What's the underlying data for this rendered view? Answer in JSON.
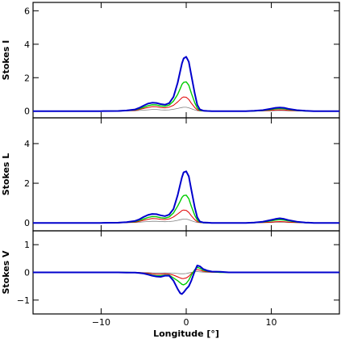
{
  "chart_data": {
    "type": "line",
    "xlabel": "Longitude [°]",
    "xlim": [
      -18,
      18
    ],
    "xticks": [
      -10,
      0,
      10
    ],
    "x": [
      -18,
      -16,
      -14,
      -12,
      -10,
      -8,
      -7,
      -6,
      -5.5,
      -5,
      -4.5,
      -4,
      -3.5,
      -3,
      -2.5,
      -2,
      -1.5,
      -1,
      -0.7,
      -0.5,
      -0.3,
      0,
      0.3,
      0.6,
      1,
      1.3,
      1.6,
      2,
      2.5,
      3,
      4,
      5,
      6,
      7,
      8,
      9,
      10,
      10.5,
      11,
      11.5,
      12,
      13,
      14,
      15,
      16,
      18
    ],
    "series_colors": [
      "#808080",
      "#e00000",
      "#00cc00",
      "#0000cc"
    ],
    "panels": [
      {
        "ylabel": "Stokes I",
        "ylim": [
          -0.4,
          6.5
        ],
        "yticks": [
          0,
          2,
          4,
          6
        ],
        "series": [
          {
            "values": [
              0,
              0,
              0,
              0,
              0,
              0,
              0.01,
              0.02,
              0.04,
              0.06,
              0.08,
              0.1,
              0.1,
              0.08,
              0.07,
              0.08,
              0.11,
              0.16,
              0.2,
              0.22,
              0.23,
              0.23,
              0.2,
              0.14,
              0.07,
              0.03,
              0.01,
              0,
              0,
              0,
              0,
              0,
              0,
              0,
              0,
              0.01,
              0.02,
              0.03,
              0.04,
              0.03,
              0.02,
              0.01,
              0,
              0,
              0,
              0
            ]
          },
          {
            "values": [
              0,
              0,
              0,
              0,
              0,
              0,
              0.02,
              0.05,
              0.1,
              0.16,
              0.22,
              0.27,
              0.26,
              0.22,
              0.2,
              0.24,
              0.35,
              0.55,
              0.7,
              0.8,
              0.85,
              0.83,
              0.7,
              0.48,
              0.22,
              0.08,
              0.03,
              0.01,
              0,
              0,
              0,
              0,
              0,
              0,
              0.01,
              0.02,
              0.05,
              0.07,
              0.08,
              0.07,
              0.05,
              0.02,
              0.01,
              0,
              0,
              0
            ]
          },
          {
            "values": [
              0,
              0,
              0,
              0,
              0,
              0.01,
              0.03,
              0.08,
              0.15,
              0.23,
              0.32,
              0.38,
              0.37,
              0.31,
              0.29,
              0.36,
              0.6,
              1,
              1.35,
              1.6,
              1.72,
              1.75,
              1.55,
              1.08,
              0.5,
              0.18,
              0.05,
              0.02,
              0.01,
              0,
              0,
              0,
              0,
              0,
              0.01,
              0.04,
              0.1,
              0.14,
              0.16,
              0.14,
              0.1,
              0.04,
              0.01,
              0,
              0,
              0
            ]
          },
          {
            "values": [
              0,
              0,
              0,
              0,
              0,
              0.01,
              0.04,
              0.1,
              0.2,
              0.33,
              0.45,
              0.5,
              0.49,
              0.42,
              0.38,
              0.48,
              0.85,
              1.7,
              2.4,
              2.85,
              3.15,
              3.25,
              2.95,
              2.15,
              1.05,
              0.38,
              0.1,
              0.03,
              0.01,
              0,
              0,
              0,
              0,
              0,
              0.02,
              0.06,
              0.15,
              0.2,
              0.22,
              0.2,
              0.14,
              0.06,
              0.02,
              0,
              0,
              0
            ]
          }
        ]
      },
      {
        "ylabel": "Stokes L",
        "ylim": [
          -0.4,
          5.3
        ],
        "yticks": [
          0,
          2,
          4
        ],
        "series": [
          {
            "values": [
              0,
              0,
              0,
              0,
              0,
              0,
              0.01,
              0.02,
              0.03,
              0.05,
              0.07,
              0.08,
              0.08,
              0.07,
              0.06,
              0.07,
              0.09,
              0.13,
              0.16,
              0.18,
              0.19,
              0.19,
              0.16,
              0.11,
              0.05,
              0.02,
              0.01,
              0,
              0,
              0,
              0,
              0,
              0,
              0,
              0,
              0.01,
              0.02,
              0.03,
              0.03,
              0.03,
              0.02,
              0.01,
              0,
              0,
              0,
              0
            ]
          },
          {
            "values": [
              0,
              0,
              0,
              0,
              0,
              0,
              0.02,
              0.04,
              0.08,
              0.13,
              0.18,
              0.22,
              0.21,
              0.18,
              0.17,
              0.2,
              0.3,
              0.45,
              0.55,
              0.62,
              0.65,
              0.63,
              0.53,
              0.36,
              0.16,
              0.06,
              0.02,
              0.01,
              0,
              0,
              0,
              0,
              0,
              0,
              0.01,
              0.02,
              0.04,
              0.06,
              0.07,
              0.06,
              0.04,
              0.02,
              0.01,
              0,
              0,
              0
            ]
          },
          {
            "values": [
              0,
              0,
              0,
              0,
              0,
              0.01,
              0.03,
              0.07,
              0.13,
              0.2,
              0.27,
              0.32,
              0.31,
              0.26,
              0.24,
              0.3,
              0.5,
              0.85,
              1.1,
              1.28,
              1.38,
              1.4,
              1.22,
              0.84,
              0.38,
              0.14,
              0.04,
              0.01,
              0,
              0,
              0,
              0,
              0,
              0,
              0.01,
              0.04,
              0.1,
              0.14,
              0.16,
              0.14,
              0.1,
              0.04,
              0.01,
              0,
              0,
              0
            ]
          },
          {
            "values": [
              0,
              0,
              0,
              0,
              0,
              0.01,
              0.04,
              0.1,
              0.18,
              0.3,
              0.4,
              0.45,
              0.44,
              0.38,
              0.34,
              0.42,
              0.7,
              1.4,
              1.95,
              2.3,
              2.55,
              2.6,
              2.35,
              1.68,
              0.78,
              0.28,
              0.07,
              0.02,
              0.01,
              0,
              0,
              0,
              0,
              0,
              0.02,
              0.06,
              0.15,
              0.2,
              0.23,
              0.2,
              0.14,
              0.06,
              0.02,
              0,
              0,
              0
            ]
          }
        ]
      },
      {
        "ylabel": "Stokes V",
        "ylim": [
          -1.5,
          1.5
        ],
        "yticks": [
          -1,
          0,
          1
        ],
        "series": [
          {
            "values": [
              0,
              0,
              0,
              0,
              0,
              0,
              0,
              0,
              0,
              -0.01,
              -0.01,
              -0.02,
              -0.02,
              -0.02,
              -0.02,
              -0.02,
              -0.03,
              -0.04,
              -0.05,
              -0.05,
              -0.05,
              -0.04,
              -0.02,
              0,
              0.02,
              0.03,
              0.02,
              0.01,
              0,
              0,
              0,
              0,
              0,
              0,
              0,
              0,
              0,
              0,
              0,
              0,
              0,
              0,
              0,
              0,
              0,
              0
            ]
          },
          {
            "values": [
              0,
              0,
              0,
              0,
              0,
              0,
              0,
              0,
              -0.01,
              -0.02,
              -0.03,
              -0.05,
              -0.06,
              -0.06,
              -0.05,
              -0.06,
              -0.1,
              -0.16,
              -0.2,
              -0.22,
              -0.22,
              -0.2,
              -0.14,
              -0.04,
              0.06,
              0.1,
              0.08,
              0.04,
              0.02,
              0.01,
              0,
              0,
              0,
              0,
              0,
              0,
              0,
              0,
              0,
              0,
              0,
              0,
              0,
              0,
              0,
              0
            ]
          },
          {
            "values": [
              0,
              0,
              0,
              0,
              0,
              0,
              0,
              -0.01,
              -0.02,
              -0.04,
              -0.06,
              -0.1,
              -0.12,
              -0.12,
              -0.1,
              -0.1,
              -0.2,
              -0.3,
              -0.38,
              -0.43,
              -0.45,
              -0.4,
              -0.28,
              -0.1,
              0.1,
              0.18,
              0.15,
              0.08,
              0.04,
              0.02,
              0,
              0,
              0,
              0,
              0,
              0,
              0,
              0,
              0,
              0,
              0,
              0,
              0,
              0,
              0,
              0
            ]
          },
          {
            "values": [
              0,
              0,
              0,
              0,
              0,
              0,
              -0.01,
              -0.01,
              -0.02,
              -0.04,
              -0.08,
              -0.12,
              -0.15,
              -0.16,
              -0.12,
              -0.12,
              -0.3,
              -0.6,
              -0.75,
              -0.78,
              -0.72,
              -0.6,
              -0.5,
              -0.3,
              0.05,
              0.25,
              0.22,
              0.12,
              0.06,
              0.03,
              0.02,
              0,
              0,
              0,
              0,
              0,
              0,
              0,
              0,
              0,
              0,
              0,
              0,
              0,
              0,
              0
            ]
          }
        ]
      }
    ]
  }
}
